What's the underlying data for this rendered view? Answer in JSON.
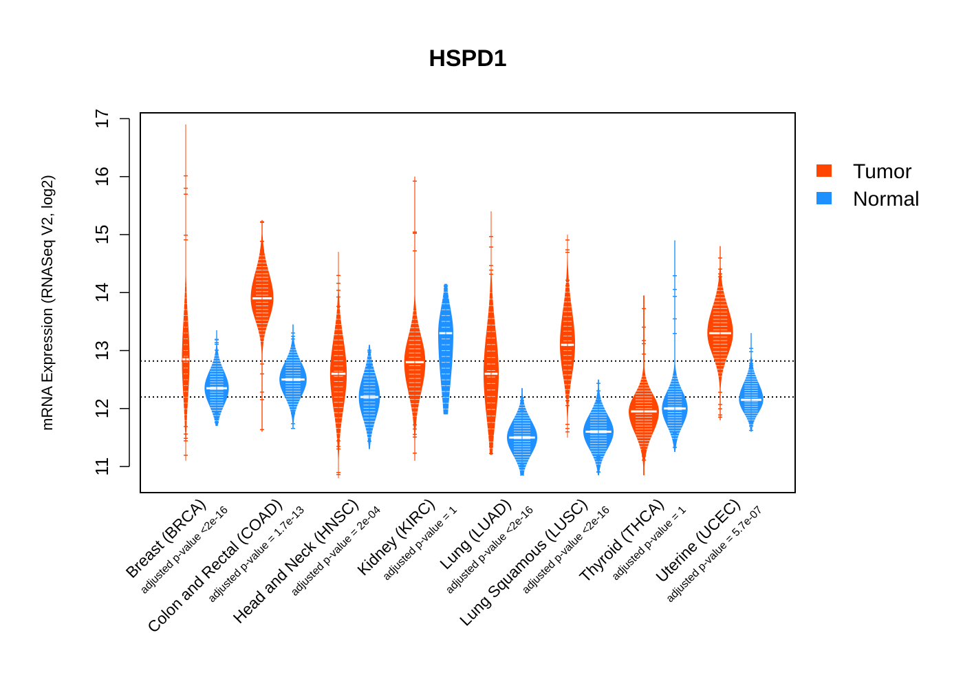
{
  "chart_data": {
    "type": "violin",
    "title": "HSPD1",
    "ylabel": "mRNA Expression (RNASeq V2, log2)",
    "xlabel": "",
    "ylim": [
      10.55,
      17.1
    ],
    "yticks": [
      11,
      12,
      13,
      14,
      15,
      16,
      17
    ],
    "reference_lines": [
      12.2,
      12.82
    ],
    "legend": {
      "position": "right",
      "entries": [
        {
          "label": "Tumor",
          "color": "#FF4500"
        },
        {
          "label": "Normal",
          "color": "#1E90FF"
        }
      ]
    },
    "colors": {
      "tumor": "#FF4500",
      "normal": "#1E90FF"
    },
    "groups": [
      {
        "cancer": "Breast (BRCA)",
        "pvalue": "adjusted p-value <2e-16",
        "tumor": {
          "median": 12.85,
          "q1": 12.4,
          "q3": 13.3,
          "min": 11.1,
          "max": 16.9,
          "width": 0.25
        },
        "normal": {
          "median": 12.35,
          "q1": 12.15,
          "q3": 12.55,
          "min": 11.7,
          "max": 13.35,
          "width": 0.8
        }
      },
      {
        "cancer": "Colon and Rectal (COAD)",
        "pvalue": "adjusted p-value = 1.7e-13",
        "tumor": {
          "median": 13.9,
          "q1": 13.65,
          "q3": 14.2,
          "min": 11.6,
          "max": 15.25,
          "width": 0.75
        },
        "normal": {
          "median": 12.5,
          "q1": 12.3,
          "q3": 12.7,
          "min": 11.65,
          "max": 13.45,
          "width": 0.9
        }
      },
      {
        "cancer": "Head and Neck (HNSC)",
        "pvalue": "adjusted p-value = 2e-04",
        "tumor": {
          "median": 12.6,
          "q1": 12.2,
          "q3": 13.0,
          "min": 10.8,
          "max": 14.7,
          "width": 0.55
        },
        "normal": {
          "median": 12.2,
          "q1": 11.95,
          "q3": 12.45,
          "min": 11.3,
          "max": 13.1,
          "width": 0.7
        }
      },
      {
        "cancer": "Kidney (KIRC)",
        "pvalue": "adjusted p-value = 1",
        "tumor": {
          "median": 12.8,
          "q1": 12.45,
          "q3": 13.1,
          "min": 11.1,
          "max": 16.0,
          "width": 0.7
        },
        "normal": {
          "median": 13.3,
          "q1": 12.7,
          "q3": 13.6,
          "min": 11.9,
          "max": 14.15,
          "width": 0.5
        }
      },
      {
        "cancer": "Lung (LUAD)",
        "pvalue": "adjusted p-value <2e-16",
        "tumor": {
          "median": 12.6,
          "q1": 12.1,
          "q3": 13.1,
          "min": 11.2,
          "max": 15.4,
          "width": 0.5
        },
        "normal": {
          "median": 11.5,
          "q1": 11.3,
          "q3": 11.7,
          "min": 10.85,
          "max": 12.35,
          "width": 1.0
        }
      },
      {
        "cancer": "Lung Squamous (LUSC)",
        "pvalue": "adjusted p-value <2e-16",
        "tumor": {
          "median": 13.1,
          "q1": 12.75,
          "q3": 13.5,
          "min": 11.5,
          "max": 15.0,
          "width": 0.5
        },
        "normal": {
          "median": 11.6,
          "q1": 11.4,
          "q3": 11.8,
          "min": 10.85,
          "max": 12.5,
          "width": 1.0
        }
      },
      {
        "cancer": "Thyroid (THCA)",
        "pvalue": "adjusted p-value = 1",
        "tumor": {
          "median": 11.95,
          "q1": 11.7,
          "q3": 12.15,
          "min": 10.85,
          "max": 13.95,
          "width": 1.0
        },
        "normal": {
          "median": 12.0,
          "q1": 11.8,
          "q3": 12.2,
          "min": 11.25,
          "max": 14.9,
          "width": 0.85
        }
      },
      {
        "cancer": "Uterine (UCEC)",
        "pvalue": "adjusted p-value = 5.7e-07",
        "tumor": {
          "median": 13.3,
          "q1": 13.05,
          "q3": 13.6,
          "min": 11.8,
          "max": 14.8,
          "width": 0.85
        },
        "normal": {
          "median": 12.15,
          "q1": 12.0,
          "q3": 12.35,
          "min": 11.6,
          "max": 13.3,
          "width": 0.8
        }
      }
    ]
  }
}
